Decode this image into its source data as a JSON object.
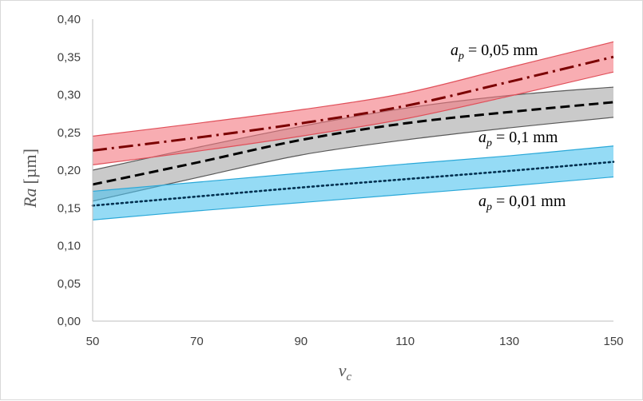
{
  "chart_data": {
    "type": "line",
    "xlabel": "v",
    "xlabel_sub": "c",
    "ylabel_main": "Ra",
    "ylabel_unit": "[µm]",
    "xlim": [
      50,
      150
    ],
    "ylim": [
      0,
      0.4
    ],
    "x_ticks": [
      50,
      70,
      90,
      110,
      130,
      150
    ],
    "x_tick_labels": [
      "50",
      "70",
      "90",
      "110",
      "130",
      "150"
    ],
    "y_ticks": [
      0,
      0.05,
      0.1,
      0.15,
      0.2,
      0.25,
      0.3,
      0.35,
      0.4
    ],
    "y_tick_labels": [
      "0,00",
      "0,05",
      "0,10",
      "0,15",
      "0,20",
      "0,25",
      "0,30",
      "0,35",
      "0,40"
    ],
    "grid": false,
    "series": [
      {
        "name": "a_p = 0,05 mm",
        "label_italic": "a",
        "label_sub": "p",
        "label_rest": " = 0,05 mm",
        "color": "#7b0000",
        "band_color": "#f4777f",
        "band_stroke": "#e0505a",
        "dash": "18,6,3,6",
        "x": [
          50,
          70,
          90,
          110,
          130,
          150
        ],
        "values": [
          0.226,
          0.243,
          0.262,
          0.285,
          0.317,
          0.35
        ],
        "lower": [
          0.207,
          0.225,
          0.245,
          0.268,
          0.298,
          0.33
        ],
        "upper": [
          0.245,
          0.262,
          0.28,
          0.302,
          0.336,
          0.37
        ]
      },
      {
        "name": "a_p = 0,1 mm",
        "label_italic": "a",
        "label_sub": "p",
        "label_rest": " = 0,1 mm",
        "color": "#000000",
        "band_color": "#a6a6a6",
        "band_stroke": "#595959",
        "dash": "12,6",
        "x": [
          50,
          70,
          90,
          110,
          130,
          150
        ],
        "values": [
          0.181,
          0.21,
          0.24,
          0.262,
          0.277,
          0.29
        ],
        "lower": [
          0.159,
          0.19,
          0.22,
          0.24,
          0.256,
          0.27
        ],
        "upper": [
          0.2,
          0.23,
          0.258,
          0.282,
          0.299,
          0.31
        ]
      },
      {
        "name": "a_p = 0,01 mm",
        "label_italic": "a",
        "label_sub": "p",
        "label_rest": " = 0,01 mm",
        "color": "#003050",
        "band_color": "#4fc3ef",
        "band_stroke": "#2aa8d8",
        "dash": "2,4",
        "x": [
          50,
          70,
          90,
          110,
          130,
          150
        ],
        "values": [
          0.153,
          0.165,
          0.177,
          0.188,
          0.199,
          0.211
        ],
        "lower": [
          0.134,
          0.146,
          0.157,
          0.168,
          0.179,
          0.191
        ],
        "upper": [
          0.172,
          0.184,
          0.196,
          0.208,
          0.219,
          0.232
        ]
      }
    ]
  }
}
